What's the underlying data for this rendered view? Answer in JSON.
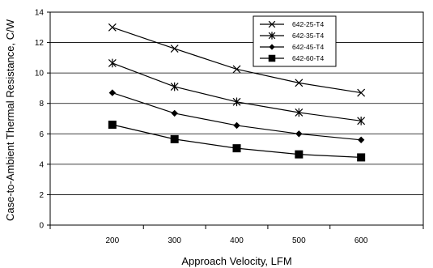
{
  "chart_data": {
    "type": "line",
    "title": "",
    "xlabel": "Approach Velocity, LFM",
    "ylabel": "Case-to-Ambient Thermal Resistance, C/W",
    "xlim": [
      100,
      700
    ],
    "ylim": [
      0,
      14
    ],
    "x_ticks": [
      200,
      300,
      400,
      500,
      600
    ],
    "y_ticks": [
      0,
      2,
      4,
      6,
      8,
      10,
      12,
      14
    ],
    "x_tick_labels": [
      "200",
      "300",
      "400",
      "500",
      "600"
    ],
    "y_tick_labels": [
      "0",
      "2",
      "4",
      "6",
      "8",
      "10",
      "12",
      "14"
    ],
    "grid": "horizontal",
    "legend_position": "top-right",
    "x": [
      200,
      300,
      400,
      500,
      600
    ],
    "series": [
      {
        "name": "642-25-T4",
        "marker": "x-cross",
        "values": [
          13.0,
          11.6,
          10.25,
          9.35,
          8.7
        ]
      },
      {
        "name": "642-35-T4",
        "marker": "asterisk",
        "values": [
          10.65,
          9.1,
          8.1,
          7.4,
          6.85
        ]
      },
      {
        "name": "642-45-T4",
        "marker": "diamond",
        "values": [
          8.7,
          7.35,
          6.55,
          6.0,
          5.6
        ]
      },
      {
        "name": "642-60-T4",
        "marker": "square",
        "values": [
          6.6,
          5.65,
          5.05,
          4.65,
          4.45
        ]
      }
    ]
  }
}
